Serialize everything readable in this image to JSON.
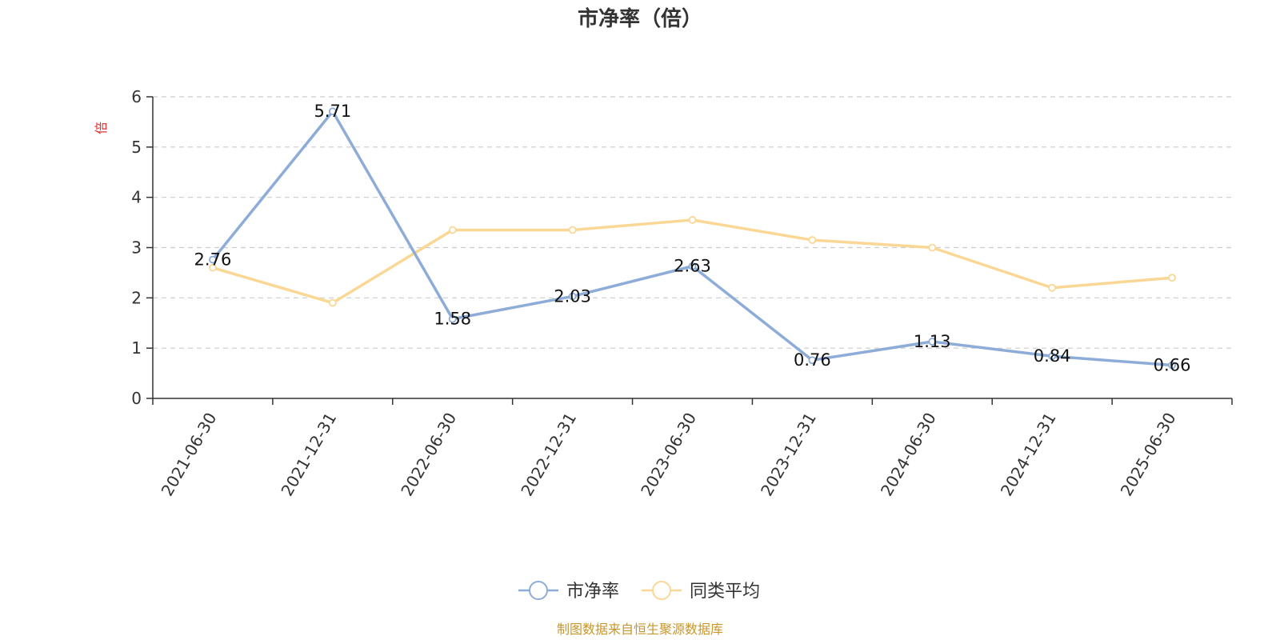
{
  "chart_data": {
    "type": "line",
    "title": "市净率（倍）",
    "ylabel": "倍",
    "ylim": [
      0,
      6
    ],
    "yticks": [
      0,
      1,
      2,
      3,
      4,
      5,
      6
    ],
    "grid": true,
    "categories": [
      "2021-06-30",
      "2021-12-31",
      "2022-06-30",
      "2022-12-31",
      "2023-06-30",
      "2023-12-31",
      "2024-06-30",
      "2024-12-31",
      "2025-06-30"
    ],
    "series": [
      {
        "name": "市净率",
        "color": "#8eacd8",
        "values": [
          2.76,
          5.71,
          1.58,
          2.03,
          2.63,
          0.76,
          1.13,
          0.84,
          0.66
        ],
        "labels": [
          "2.76",
          "5.71",
          "1.58",
          "2.03",
          "2.63",
          "0.76",
          "1.13",
          "0.84",
          "0.66"
        ]
      },
      {
        "name": "同类平均",
        "color": "#fad795",
        "values": [
          2.6,
          1.9,
          3.35,
          3.35,
          3.55,
          3.15,
          3.0,
          2.2,
          2.4
        ]
      }
    ],
    "legend_position": "bottom-center",
    "source_note": "制图数据来自恒生聚源数据库",
    "colors": {
      "axis": "#333333",
      "grid": "#cccccc",
      "ylabel": "#e03030",
      "source": "#c8962c"
    }
  }
}
